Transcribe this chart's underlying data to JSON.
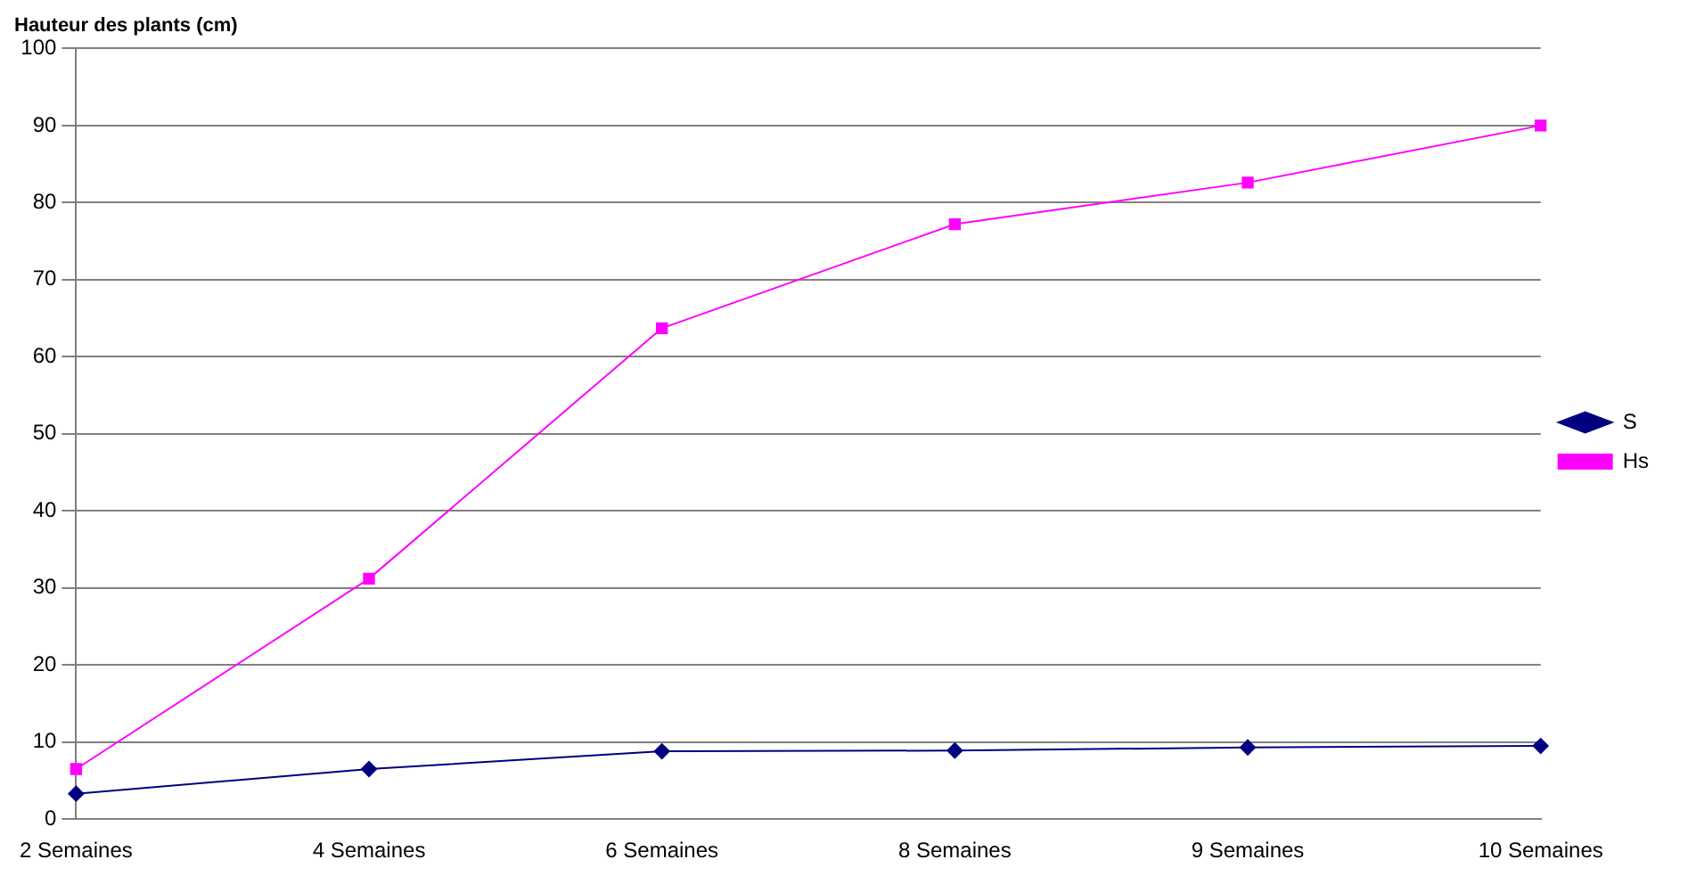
{
  "chart_data": {
    "type": "line",
    "ylabel": "Hauteur des plants (cm)",
    "categories": [
      "2 Semaines",
      "4 Semaines",
      "6 Semaines",
      "8 Semaines",
      "9 Semaines",
      "10 Semaines"
    ],
    "series": [
      {
        "name": "S",
        "color": "#000080",
        "marker": "diamond",
        "values": [
          3.3,
          6.5,
          8.8,
          8.9,
          9.3,
          9.5
        ]
      },
      {
        "name": "Hs",
        "color": "#ff00ff",
        "marker": "square",
        "values": [
          6.5,
          31.2,
          63.7,
          77.2,
          82.6,
          90
        ]
      }
    ],
    "ylim": [
      0,
      100
    ],
    "yticks": [
      0,
      10,
      20,
      30,
      40,
      50,
      60,
      70,
      80,
      90,
      100
    ],
    "grid": "y",
    "legend": "right",
    "line_style": "solid"
  }
}
